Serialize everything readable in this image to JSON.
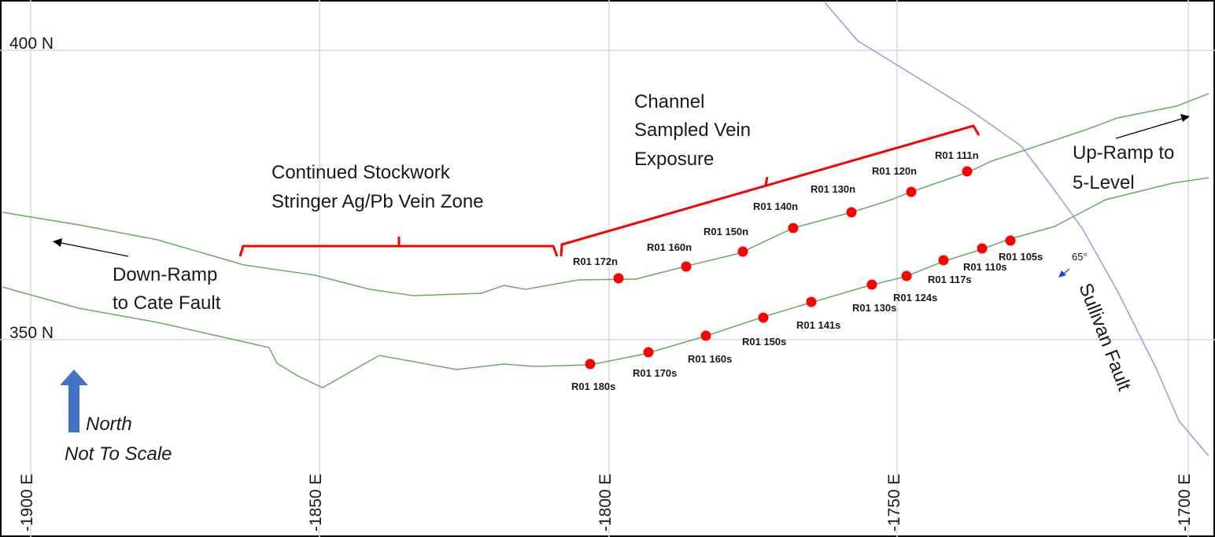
{
  "grid": {
    "northings": [
      {
        "label": "400 N",
        "value": 400
      },
      {
        "label": "350 N",
        "value": 350
      }
    ],
    "eastings": [
      {
        "label": "-1900 E",
        "value": -1900
      },
      {
        "label": "-1850 E",
        "value": -1850
      },
      {
        "label": "-1800 E",
        "value": -1800
      },
      {
        "label": "-1750 E",
        "value": -1750
      },
      {
        "label": "-1700 E",
        "value": -1700
      }
    ]
  },
  "labels": {
    "channel_sampled": [
      "Channel",
      "Sampled Vein",
      "Exposure"
    ],
    "stockwork": [
      "Continued Stockwork",
      "Stringer Ag/Pb Vein Zone"
    ],
    "up_ramp": [
      "Up-Ramp to",
      "5-Level"
    ],
    "down_ramp": [
      "Down-Ramp",
      "to Cate Fault"
    ],
    "fault_name": "Sullivan Fault",
    "fault_dip": "65°",
    "north": "North",
    "scale_note": "Not To Scale"
  },
  "samples_north": [
    "R01 172n",
    "R01 160n",
    "R01 150n",
    "R01 140n",
    "R01 130n",
    "R01 120n",
    "R01 111n"
  ],
  "samples_south": [
    "R01 180s",
    "R01 170s",
    "R01 160s",
    "R01 150s",
    "R01 141s",
    "R01 130s",
    "R01 124s",
    "R01 117s",
    "R01 110s",
    "R01 105s"
  ],
  "colors": {
    "grid": "#d9d9d9",
    "drift": "#6aaa64",
    "fault": "#9a9ae6",
    "sample": "#ff0000",
    "bracket": "#ff0000",
    "north_arrow": "#4472c4",
    "dip_arrow": "#1f3fe0"
  }
}
